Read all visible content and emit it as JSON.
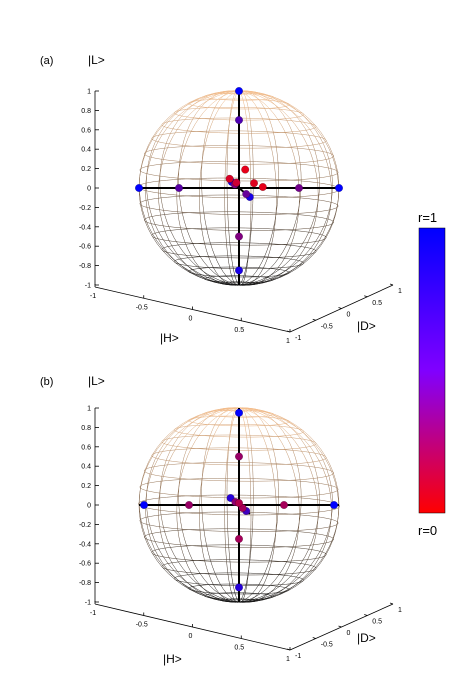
{
  "panels": [
    {
      "label": "(a)",
      "z_axis_label": "|L>",
      "x_axis_label": "|H>",
      "y_axis_label": "|D>",
      "z_ticks": [
        "1",
        "0.8",
        "0.6",
        "0.4",
        "0.2",
        "0",
        "-0.2",
        "-0.4",
        "-0.6",
        "-0.8",
        "-1"
      ],
      "x_ticks": [
        "-1",
        "-0.5",
        "0",
        "0.5",
        "1"
      ],
      "y_ticks": [
        "-1",
        "-0.5",
        "0",
        "0.5",
        "1"
      ],
      "points": [
        {
          "x": 0.0,
          "y": 0.0,
          "z": 1.0,
          "r": 1.0
        },
        {
          "x": 0.0,
          "y": 0.0,
          "z": 0.7,
          "r": 0.7
        },
        {
          "x": 0.0,
          "y": 0.0,
          "z": -0.5,
          "r": 0.5
        },
        {
          "x": 0.0,
          "y": 0.0,
          "z": -0.85,
          "r": 0.9
        },
        {
          "x": -1.0,
          "y": 0.0,
          "z": 0.0,
          "r": 1.0
        },
        {
          "x": -0.6,
          "y": 0.0,
          "z": 0.0,
          "r": 0.65
        },
        {
          "x": 1.0,
          "y": 0.0,
          "z": 0.0,
          "r": 1.0
        },
        {
          "x": 0.6,
          "y": 0.0,
          "z": 0.0,
          "r": 0.55
        },
        {
          "x": 0.0,
          "y": 0.9,
          "z": 0.0,
          "r": 0.9
        },
        {
          "x": 0.0,
          "y": 0.6,
          "z": 0.0,
          "r": 0.6
        },
        {
          "x": 0.0,
          "y": -0.6,
          "z": 0.0,
          "r": 0.9
        },
        {
          "x": 0.0,
          "y": -0.35,
          "z": 0.0,
          "r": 0.5
        },
        {
          "x": -0.1,
          "y": 0.05,
          "z": 0.1,
          "r": 0.15
        },
        {
          "x": 0.05,
          "y": 0.1,
          "z": 0.2,
          "r": 0.1
        },
        {
          "x": 0.15,
          "y": 0.0,
          "z": 0.05,
          "r": 0.12
        },
        {
          "x": 0.25,
          "y": -0.1,
          "z": 0.0,
          "r": 0.1
        },
        {
          "x": -0.02,
          "y": -0.05,
          "z": 0.05,
          "r": 0.2
        }
      ]
    },
    {
      "label": "(b)",
      "z_axis_label": "|L>",
      "x_axis_label": "|H>",
      "y_axis_label": "|D>",
      "z_ticks": [
        "1",
        "0.8",
        "0.6",
        "0.4",
        "0.2",
        "0",
        "-0.2",
        "-0.4",
        "-0.6",
        "-0.8",
        "-1"
      ],
      "x_ticks": [
        "-1",
        "-0.5",
        "0",
        "0.5",
        "1"
      ],
      "y_ticks": [
        "-1",
        "-0.5",
        "0",
        "0.5",
        "1"
      ],
      "points": [
        {
          "x": 0.0,
          "y": 0.0,
          "z": 0.95,
          "r": 1.0
        },
        {
          "x": 0.0,
          "y": 0.0,
          "z": 0.5,
          "r": 0.4
        },
        {
          "x": 0.0,
          "y": 0.0,
          "z": -0.35,
          "r": 0.35
        },
        {
          "x": 0.0,
          "y": 0.0,
          "z": -0.85,
          "r": 0.85
        },
        {
          "x": -0.95,
          "y": 0.0,
          "z": 0.0,
          "r": 1.0
        },
        {
          "x": -0.5,
          "y": 0.0,
          "z": 0.0,
          "r": 0.4
        },
        {
          "x": 0.95,
          "y": 0.0,
          "z": 0.0,
          "r": 1.0
        },
        {
          "x": 0.45,
          "y": 0.0,
          "z": 0.0,
          "r": 0.35
        },
        {
          "x": 0.0,
          "y": 0.6,
          "z": 0.0,
          "r": 0.75
        },
        {
          "x": 0.0,
          "y": 0.3,
          "z": 0.0,
          "r": 0.35
        },
        {
          "x": 0.0,
          "y": -0.7,
          "z": 0.0,
          "r": 0.85
        },
        {
          "x": 0.0,
          "y": -0.3,
          "z": 0.0,
          "r": 0.45
        },
        {
          "x": 0.0,
          "y": 0.0,
          "z": 0.02,
          "r": 0.3
        }
      ]
    }
  ],
  "colorbar": {
    "top_label": "r=1",
    "bottom_label": "r=0",
    "top_color": "#0000ff",
    "mid_color": "#8000ff",
    "bottom_color": "#ff0000"
  }
}
